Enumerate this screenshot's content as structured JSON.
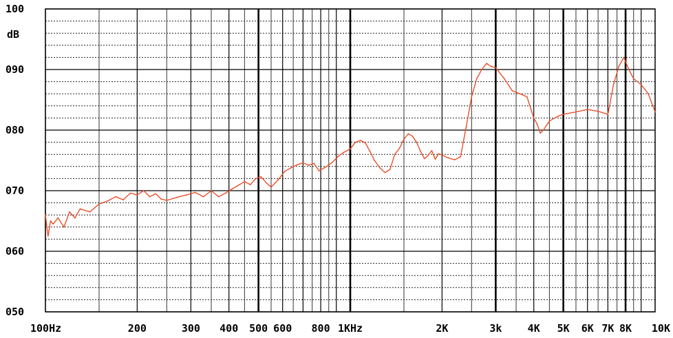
{
  "chart_data": {
    "type": "line",
    "title": "",
    "xlabel": "",
    "ylabel": "dB",
    "x_scale": "log",
    "xlim": [
      100,
      10000
    ],
    "ylim": [
      50,
      100
    ],
    "grid": true,
    "legend": "none",
    "y_ticks": [
      {
        "value": 100,
        "label": "100"
      },
      {
        "value": 90,
        "label": "090"
      },
      {
        "value": 80,
        "label": "080"
      },
      {
        "value": 70,
        "label": "070"
      },
      {
        "value": 60,
        "label": "060"
      },
      {
        "value": 50,
        "label": "050"
      }
    ],
    "y_unit_label": "dB",
    "x_ticks": [
      {
        "value": 100,
        "label": "100Hz"
      },
      {
        "value": 200,
        "label": "200"
      },
      {
        "value": 300,
        "label": "300"
      },
      {
        "value": 400,
        "label": "400"
      },
      {
        "value": 500,
        "label": "500"
      },
      {
        "value": 600,
        "label": "600"
      },
      {
        "value": 800,
        "label": "800"
      },
      {
        "value": 1000,
        "label": "1KHz"
      },
      {
        "value": 2000,
        "label": "2K"
      },
      {
        "value": 3000,
        "label": "3k"
      },
      {
        "value": 4000,
        "label": "4K"
      },
      {
        "value": 5000,
        "label": "5K"
      },
      {
        "value": 6000,
        "label": "6K"
      },
      {
        "value": 7000,
        "label": "7K"
      },
      {
        "value": 8000,
        "label": "8K"
      },
      {
        "value": 10000,
        "label": "10K"
      }
    ],
    "series": [
      {
        "color": "#e8502a",
        "x": [
          100,
          102,
          104,
          106,
          110,
          115,
          120,
          125,
          130,
          140,
          150,
          160,
          170,
          180,
          190,
          200,
          210,
          220,
          230,
          240,
          250,
          270,
          290,
          310,
          330,
          350,
          370,
          390,
          410,
          430,
          450,
          470,
          490,
          510,
          530,
          550,
          580,
          610,
          640,
          670,
          700,
          730,
          760,
          790,
          830,
          870,
          910,
          950,
          1000,
          1040,
          1080,
          1120,
          1160,
          1200,
          1250,
          1300,
          1350,
          1400,
          1450,
          1500,
          1550,
          1600,
          1650,
          1700,
          1750,
          1800,
          1850,
          1900,
          1950,
          2000,
          2100,
          2200,
          2300,
          2400,
          2500,
          2600,
          2700,
          2800,
          2900,
          3000,
          3200,
          3400,
          3600,
          3800,
          4000,
          4100,
          4200,
          4300,
          4500,
          4800,
          5000,
          5500,
          6000,
          6500,
          7000,
          7300,
          7600,
          7900,
          8200,
          8500,
          9000,
          9500,
          10000
        ],
        "y": [
          66.0,
          62.5,
          65.0,
          64.5,
          65.5,
          64.0,
          66.5,
          65.5,
          67.0,
          66.5,
          67.8,
          68.3,
          69.0,
          68.5,
          69.6,
          69.3,
          70.0,
          69.0,
          69.5,
          68.6,
          68.4,
          68.9,
          69.3,
          69.7,
          69.0,
          70.0,
          69.0,
          69.6,
          70.3,
          70.9,
          71.5,
          71.0,
          72.0,
          72.3,
          71.3,
          70.6,
          71.8,
          73.2,
          73.8,
          74.3,
          74.6,
          74.2,
          74.5,
          73.3,
          73.9,
          74.6,
          75.6,
          76.3,
          76.9,
          78.0,
          78.3,
          77.9,
          76.5,
          75.0,
          73.8,
          73.0,
          73.5,
          76.0,
          77.0,
          78.5,
          79.4,
          79.0,
          78.0,
          76.5,
          75.3,
          75.8,
          76.6,
          75.2,
          76.1,
          75.9,
          75.4,
          75.1,
          75.6,
          80.5,
          85.5,
          88.5,
          90.0,
          91.0,
          90.5,
          90.3,
          88.5,
          86.5,
          86.0,
          85.5,
          82.0,
          81.0,
          79.5,
          80.0,
          81.5,
          82.3,
          82.6,
          83.0,
          83.4,
          83.1,
          82.6,
          87.5,
          90.5,
          92.0,
          90.0,
          88.5,
          87.5,
          86.0,
          83.0
        ]
      }
    ]
  }
}
